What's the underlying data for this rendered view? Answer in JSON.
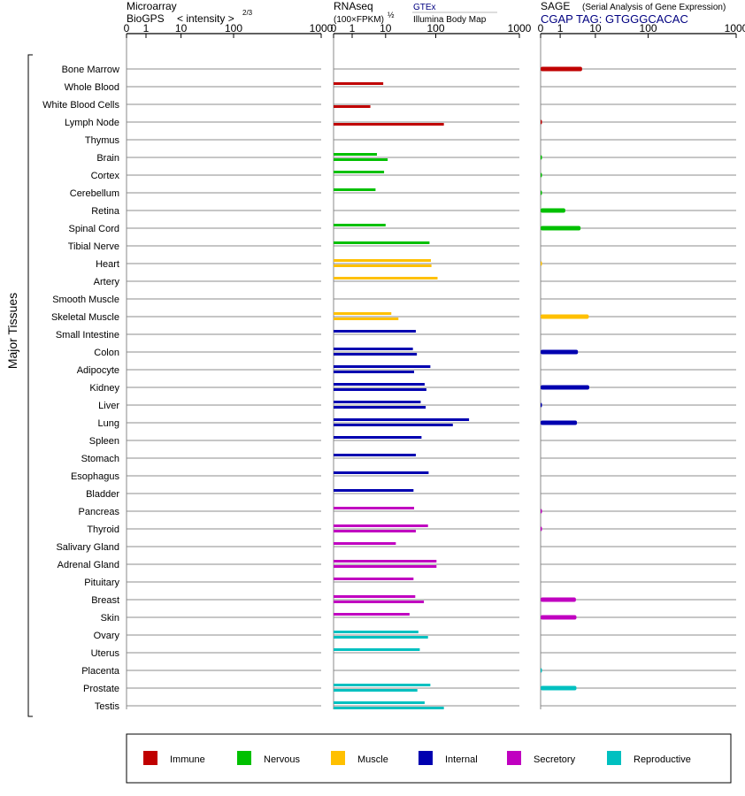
{
  "headers": {
    "microarray_line1": "Microarray",
    "microarray_line2": "BioGPS",
    "intensity_label": "< intensity >",
    "intensity_exponent": "2/3",
    "rnaseq_title": "RNAseq",
    "rnaseq_units": "(100×FPKM)",
    "rnaseq_exponent": "½",
    "gtex_label": "GTEx",
    "illumina_label": "Illumina Body Map",
    "sage_title": "SAGE",
    "sage_subtitle": "(Serial Analysis of Gene Expression)",
    "sage_tag": "CGAP TAG: GTGGGCACAC"
  },
  "y_axis_label": "Major Tissues",
  "legend": [
    {
      "label": "Immune",
      "color": "#c00000"
    },
    {
      "label": "Nervous",
      "color": "#00c000"
    },
    {
      "label": "Muscle",
      "color": "#ffc000"
    },
    {
      "label": "Internal",
      "color": "#0000b0"
    },
    {
      "label": "Secretory",
      "color": "#c000c0"
    },
    {
      "label": "Reproductive",
      "color": "#00c0c0"
    }
  ],
  "chart_data": {
    "type": "bar",
    "orientation": "horizontal",
    "x_ticks": [
      "0",
      "1",
      "10",
      "100",
      "1000"
    ],
    "x_tick_values": [
      0,
      1,
      10,
      100,
      1000
    ],
    "tissues": [
      {
        "name": "Bone Marrow",
        "group": "Immune"
      },
      {
        "name": "Whole Blood",
        "group": "Immune"
      },
      {
        "name": "White Blood Cells",
        "group": "Immune"
      },
      {
        "name": "Lymph Node",
        "group": "Immune"
      },
      {
        "name": "Thymus",
        "group": "Immune"
      },
      {
        "name": "Brain",
        "group": "Nervous"
      },
      {
        "name": "Cortex",
        "group": "Nervous"
      },
      {
        "name": "Cerebellum",
        "group": "Nervous"
      },
      {
        "name": "Retina",
        "group": "Nervous"
      },
      {
        "name": "Spinal Cord",
        "group": "Nervous"
      },
      {
        "name": "Tibial Nerve",
        "group": "Nervous"
      },
      {
        "name": "Heart",
        "group": "Muscle"
      },
      {
        "name": "Artery",
        "group": "Muscle"
      },
      {
        "name": "Smooth Muscle",
        "group": "Muscle"
      },
      {
        "name": "Skeletal Muscle",
        "group": "Muscle"
      },
      {
        "name": "Small Intestine",
        "group": "Internal"
      },
      {
        "name": "Colon",
        "group": "Internal"
      },
      {
        "name": "Adipocyte",
        "group": "Internal"
      },
      {
        "name": "Kidney",
        "group": "Internal"
      },
      {
        "name": "Liver",
        "group": "Internal"
      },
      {
        "name": "Lung",
        "group": "Internal"
      },
      {
        "name": "Spleen",
        "group": "Internal"
      },
      {
        "name": "Stomach",
        "group": "Internal"
      },
      {
        "name": "Esophagus",
        "group": "Internal"
      },
      {
        "name": "Bladder",
        "group": "Internal"
      },
      {
        "name": "Pancreas",
        "group": "Secretory"
      },
      {
        "name": "Thyroid",
        "group": "Secretory"
      },
      {
        "name": "Salivary Gland",
        "group": "Secretory"
      },
      {
        "name": "Adrenal Gland",
        "group": "Secretory"
      },
      {
        "name": "Pituitary",
        "group": "Secretory"
      },
      {
        "name": "Breast",
        "group": "Secretory"
      },
      {
        "name": "Skin",
        "group": "Secretory"
      },
      {
        "name": "Ovary",
        "group": "Reproductive"
      },
      {
        "name": "Uterus",
        "group": "Reproductive"
      },
      {
        "name": "Placenta",
        "group": "Reproductive"
      },
      {
        "name": "Prostate",
        "group": "Reproductive"
      },
      {
        "name": "Testis",
        "group": "Reproductive"
      }
    ],
    "panels": [
      {
        "name": "Microarray BioGPS",
        "values": []
      },
      {
        "name": "RNAseq",
        "values": [
          {
            "tissue": "Whole Blood",
            "gtex": 8.5
          },
          {
            "tissue": "White Blood Cells",
            "illumina": 3.5
          },
          {
            "tissue": "Lymph Node",
            "illumina": 125
          },
          {
            "tissue": "Brain",
            "gtex": 5.5,
            "illumina": 11
          },
          {
            "tissue": "Cortex",
            "gtex": 9
          },
          {
            "tissue": "Cerebellum",
            "gtex": 5
          },
          {
            "tissue": "Spinal Cord",
            "gtex": 10
          },
          {
            "tissue": "Tibial Nerve",
            "gtex": 75
          },
          {
            "tissue": "Heart",
            "gtex": 80,
            "illumina": 82
          },
          {
            "tissue": "Artery",
            "gtex": 105
          },
          {
            "tissue": "Skeletal Muscle",
            "gtex": 13,
            "illumina": 18
          },
          {
            "tissue": "Small Intestine",
            "gtex": 40
          },
          {
            "tissue": "Colon",
            "gtex": 35,
            "illumina": 42
          },
          {
            "tissue": "Adipocyte",
            "gtex": 78,
            "illumina": 37
          },
          {
            "tissue": "Kidney",
            "gtex": 60,
            "illumina": 65
          },
          {
            "tissue": "Liver",
            "gtex": 50,
            "illumina": 63
          },
          {
            "tissue": "Lung",
            "gtex": 250,
            "illumina": 160
          },
          {
            "tissue": "Spleen",
            "gtex": 52
          },
          {
            "tissue": "Stomach",
            "gtex": 40
          },
          {
            "tissue": "Esophagus",
            "gtex": 72
          },
          {
            "tissue": "Bladder",
            "gtex": 36
          },
          {
            "tissue": "Pancreas",
            "gtex": 37
          },
          {
            "tissue": "Thyroid",
            "gtex": 70,
            "illumina": 40
          },
          {
            "tissue": "Salivary Gland",
            "gtex": 16
          },
          {
            "tissue": "Adrenal Gland",
            "gtex": 102,
            "illumina": 102
          },
          {
            "tissue": "Pituitary",
            "gtex": 36
          },
          {
            "tissue": "Breast",
            "gtex": 39,
            "illumina": 58
          },
          {
            "tissue": "Skin",
            "gtex": 30
          },
          {
            "tissue": "Ovary",
            "gtex": 45,
            "illumina": 70
          },
          {
            "tissue": "Uterus",
            "gtex": 48
          },
          {
            "tissue": "Prostate",
            "gtex": 78,
            "illumina": 43
          },
          {
            "tissue": "Testis",
            "gtex": 60,
            "illumina": 125
          }
        ]
      },
      {
        "name": "SAGE",
        "values": [
          {
            "tissue": "Bone Marrow",
            "value": 4.2
          },
          {
            "tissue": "Lymph Node",
            "value": 0.05
          },
          {
            "tissue": "Brain",
            "value": 0.03
          },
          {
            "tissue": "Cortex",
            "value": 0.02
          },
          {
            "tissue": "Cerebellum",
            "value": 0.02
          },
          {
            "tissue": "Retina",
            "value": 1.4
          },
          {
            "tissue": "Spinal Cord",
            "value": 3.8
          },
          {
            "tissue": "Heart",
            "value": 0.02
          },
          {
            "tissue": "Skeletal Muscle",
            "value": 6.5
          },
          {
            "tissue": "Colon",
            "value": 3.2
          },
          {
            "tissue": "Kidney",
            "value": 6.7
          },
          {
            "tissue": "Liver",
            "value": 0.04
          },
          {
            "tissue": "Lung",
            "value": 3.0
          },
          {
            "tissue": "Pancreas",
            "value": 0.04
          },
          {
            "tissue": "Thyroid",
            "value": 0.03
          },
          {
            "tissue": "Breast",
            "value": 2.8
          },
          {
            "tissue": "Skin",
            "value": 2.9
          },
          {
            "tissue": "Placenta",
            "value": 0.03
          },
          {
            "tissue": "Prostate",
            "value": 2.9
          }
        ]
      }
    ]
  }
}
